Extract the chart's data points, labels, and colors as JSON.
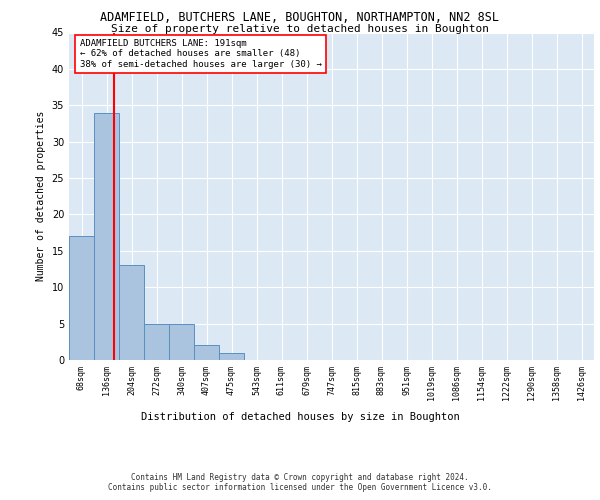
{
  "title": "ADAMFIELD, BUTCHERS LANE, BOUGHTON, NORTHAMPTON, NN2 8SL",
  "subtitle": "Size of property relative to detached houses in Boughton",
  "xlabel": "Distribution of detached houses by size in Boughton",
  "ylabel": "Number of detached properties",
  "bar_values": [
    17,
    34,
    13,
    5,
    5,
    2,
    1,
    0,
    0,
    0,
    0,
    0,
    0,
    0,
    0,
    0,
    0,
    0,
    0,
    0,
    0
  ],
  "bar_labels": [
    "68sqm",
    "136sqm",
    "204sqm",
    "272sqm",
    "340sqm",
    "407sqm",
    "475sqm",
    "543sqm",
    "611sqm",
    "679sqm",
    "747sqm",
    "815sqm",
    "883sqm",
    "951sqm",
    "1019sqm",
    "1086sqm",
    "1154sqm",
    "1222sqm",
    "1290sqm",
    "1358sqm",
    "1426sqm"
  ],
  "bar_color": "#aac4e0",
  "bar_edge_color": "#5a8fc0",
  "background_color": "#dce9f5",
  "vline_color": "red",
  "annotation_text": "ADAMFIELD BUTCHERS LANE: 191sqm\n← 62% of detached houses are smaller (48)\n38% of semi-detached houses are larger (30) →",
  "annotation_box_color": "white",
  "annotation_box_edge": "red",
  "ylim": [
    0,
    45
  ],
  "yticks": [
    0,
    5,
    10,
    15,
    20,
    25,
    30,
    35,
    40,
    45
  ],
  "footer_line1": "Contains HM Land Registry data © Crown copyright and database right 2024.",
  "footer_line2": "Contains public sector information licensed under the Open Government Licence v3.0."
}
